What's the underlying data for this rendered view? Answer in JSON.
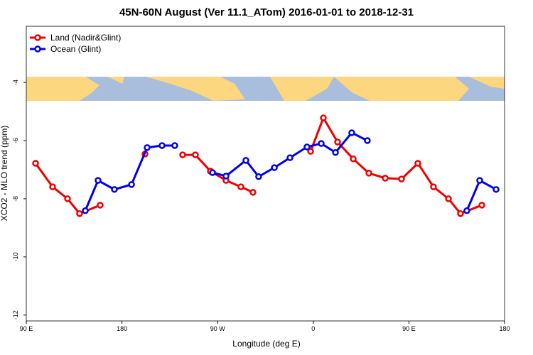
{
  "chart_data": {
    "type": "line",
    "title": "45N-60N August (Ver 11.1_ATom)   2016-01-01 to 2018-12-31",
    "x_label": "Longitude (deg E)",
    "y_label": "XCO2 - MLO trend (ppm)",
    "xlim": [
      90,
      540
    ],
    "xticks": [
      {
        "value": 90,
        "label": "90 E"
      },
      180,
      {
        "value": 270,
        "label": "90 W"
      },
      {
        "value": 360,
        "label": "0"
      },
      {
        "value": 450,
        "label": "90 E"
      },
      {
        "value": 540,
        "label": "180"
      }
    ],
    "ylim": [
      -12.2,
      -2.07
    ],
    "yticks": [
      -12,
      -10,
      -8,
      -6,
      -4
    ],
    "legend": "top-left",
    "series": [
      {
        "name": "Land (Nadir&Glint)",
        "color": "#ee0000",
        "segments": [
          {
            "x": [
              98.7,
              114.7,
              128.8,
              140.1,
              159.5
            ],
            "values": [
              -6.78,
              -7.59,
              -8.0,
              -8.51,
              -8.22
            ]
          },
          {
            "x": [
              201.7
            ],
            "values": [
              -6.46
            ]
          },
          {
            "x": [
              237.1,
              249.1,
              263.2,
              277.9,
              291.9,
              303.3
            ],
            "values": [
              -6.49,
              -6.49,
              -7.05,
              -7.37,
              -7.59,
              -7.78
            ]
          },
          {
            "x": [
              357.5,
              369.5,
              382.9,
              397.6,
              412.3,
              427.7,
              443.0,
              458.4,
              473.1,
              487.2,
              498.5,
              518.6
            ],
            "values": [
              -6.37,
              -5.22,
              -6.05,
              -6.63,
              -7.12,
              -7.29,
              -7.32,
              -6.78,
              -7.59,
              -8.0,
              -8.51,
              -8.22
            ]
          }
        ]
      },
      {
        "name": "Ocean (Glint)",
        "color": "#0000ee",
        "segments": [
          {
            "x": [
              145.5,
              157.5,
              172.9,
              189.0,
              203.7,
              217.7,
              229.7
            ],
            "values": [
              -8.41,
              -7.37,
              -7.68,
              -7.51,
              -6.24,
              -6.17,
              -6.17
            ]
          },
          {
            "x": [
              265.2,
              277.9,
              296.6,
              308.6,
              323.4,
              338.1,
              354.1,
              367.5,
              380.9,
              396.2,
              410.9
            ],
            "values": [
              -7.1,
              -7.22,
              -6.68,
              -7.24,
              -6.93,
              -6.59,
              -6.22,
              -6.1,
              -6.41,
              -5.73,
              -6.0
            ]
          },
          {
            "x": [
              504.5,
              516.6,
              532.0
            ],
            "values": [
              -8.41,
              -7.37,
              -7.68
            ]
          }
        ]
      }
    ]
  }
}
